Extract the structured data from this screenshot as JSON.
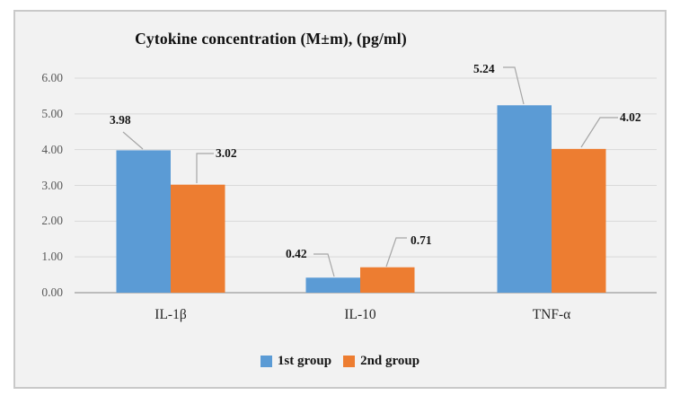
{
  "chart_data": {
    "type": "bar",
    "title": "Cytokine concentration (M±m), (pg/ml)",
    "categories": [
      "IL-1β",
      "IL-10",
      "TNF-α"
    ],
    "series": [
      {
        "name": "1st group",
        "color": "#5b9bd5",
        "values": [
          3.98,
          0.42,
          5.24
        ]
      },
      {
        "name": "2nd group",
        "color": "#ed7d31",
        "values": [
          3.02,
          0.71,
          4.02
        ]
      }
    ],
    "data_labels": [
      "3.98",
      "3.02",
      "0.42",
      "0.71",
      "5.24",
      "4.02"
    ],
    "y_ticks": [
      "6.00",
      "5.00",
      "4.00",
      "3.00",
      "2.00",
      "1.00",
      "0.00"
    ],
    "ylim": [
      0,
      6
    ],
    "grid": true,
    "legend_position": "bottom",
    "plot_background": "#f2f2f2",
    "gridline_color": "#d9d9d9",
    "leader_line_color": "#a6a6a6"
  }
}
